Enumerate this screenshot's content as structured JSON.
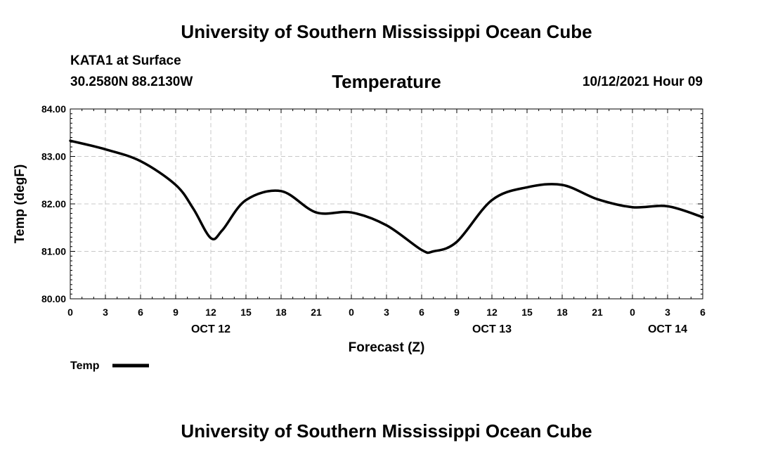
{
  "header": {
    "title": "University of Southern Mississippi Ocean Cube",
    "station": "KATA1 at Surface",
    "coordinates": "30.2580N  88.2130W",
    "variable": "Temperature",
    "datetime": "10/12/2021 Hour 09"
  },
  "footer": {
    "title": "University of Southern Mississippi Ocean Cube"
  },
  "colors": {
    "line": "#000000",
    "grid": "#c8c8c8",
    "background": "#ffffff"
  },
  "chart_data": {
    "type": "line",
    "title": "Temperature",
    "xlabel": "Forecast (Z)",
    "ylabel": "Temp (degF)",
    "ylim": [
      80.0,
      84.0
    ],
    "yticks": [
      "80.00",
      "81.00",
      "82.00",
      "83.00",
      "84.00"
    ],
    "xlim": [
      0,
      54
    ],
    "xtick_labels": [
      "0",
      "3",
      "6",
      "9",
      "12",
      "15",
      "18",
      "21",
      "0",
      "3",
      "6",
      "9",
      "12",
      "15",
      "18",
      "21",
      "0",
      "3",
      "6"
    ],
    "date_labels": [
      {
        "label": "OCT 12",
        "hour": 12
      },
      {
        "label": "OCT 13",
        "hour": 36
      },
      {
        "label": "OCT 14",
        "hour": 51
      }
    ],
    "grid": true,
    "legend": {
      "position": "bottom-left",
      "entries": [
        "Temp"
      ]
    },
    "series": [
      {
        "name": "Temp",
        "x": [
          0,
          3,
          6,
          9,
          10.5,
          12,
          13,
          15,
          18,
          21,
          24,
          27,
          30,
          31,
          33,
          36,
          39,
          42,
          45,
          48,
          51,
          54
        ],
        "values": [
          83.33,
          83.15,
          82.9,
          82.4,
          81.9,
          81.28,
          81.45,
          82.08,
          82.27,
          81.82,
          81.82,
          81.55,
          81.03,
          81.0,
          81.2,
          82.08,
          82.35,
          82.4,
          82.1,
          81.93,
          81.95,
          81.72
        ]
      }
    ]
  }
}
